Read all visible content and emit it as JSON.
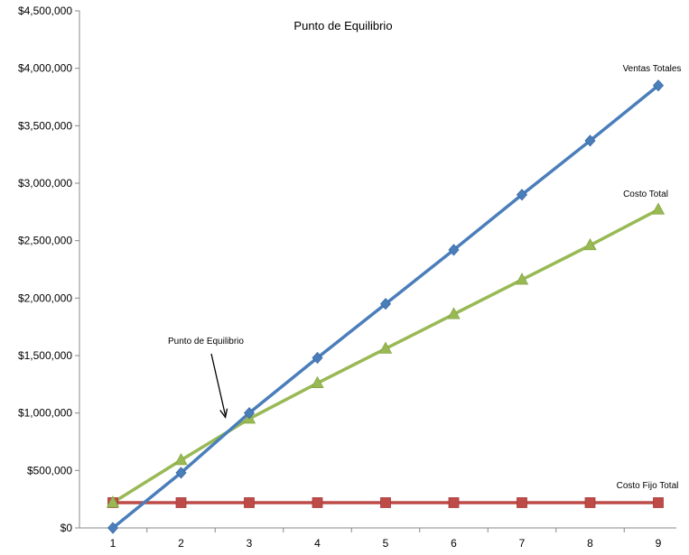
{
  "chart_data": {
    "type": "line",
    "title": "Punto de Equilibrio",
    "x": [
      1,
      2,
      3,
      4,
      5,
      6,
      7,
      8,
      9
    ],
    "ylim": [
      0,
      4500000
    ],
    "yticks": [
      0,
      500000,
      1000000,
      1500000,
      2000000,
      2500000,
      3000000,
      3500000,
      4000000,
      4500000
    ],
    "ytick_labels": [
      "$0",
      "$500,000",
      "$1,000,000",
      "$1,500,000",
      "$2,000,000",
      "$2,500,000",
      "$3,000,000",
      "$3,500,000",
      "$4,000,000",
      "$4,500,000"
    ],
    "grid": false,
    "series": [
      {
        "name": "Ventas Totales",
        "color": "#4a7ebb",
        "marker": "diamond",
        "values": [
          0,
          480000,
          1000000,
          1480000,
          1950000,
          2420000,
          2900000,
          3370000,
          3850000
        ]
      },
      {
        "name": "Costo Total",
        "color": "#98b954",
        "marker": "triangle",
        "values": [
          220000,
          590000,
          950000,
          1260000,
          1560000,
          1860000,
          2160000,
          2460000,
          2770000
        ]
      },
      {
        "name": "Costo Fijo Total",
        "color": "#be4b48",
        "marker": "square",
        "values": [
          220000,
          220000,
          220000,
          220000,
          220000,
          220000,
          220000,
          220000,
          220000
        ]
      }
    ],
    "annotation": {
      "text": "Punto de Equilibrio",
      "points_to_x": 2.65,
      "points_to_y": 900000
    }
  }
}
